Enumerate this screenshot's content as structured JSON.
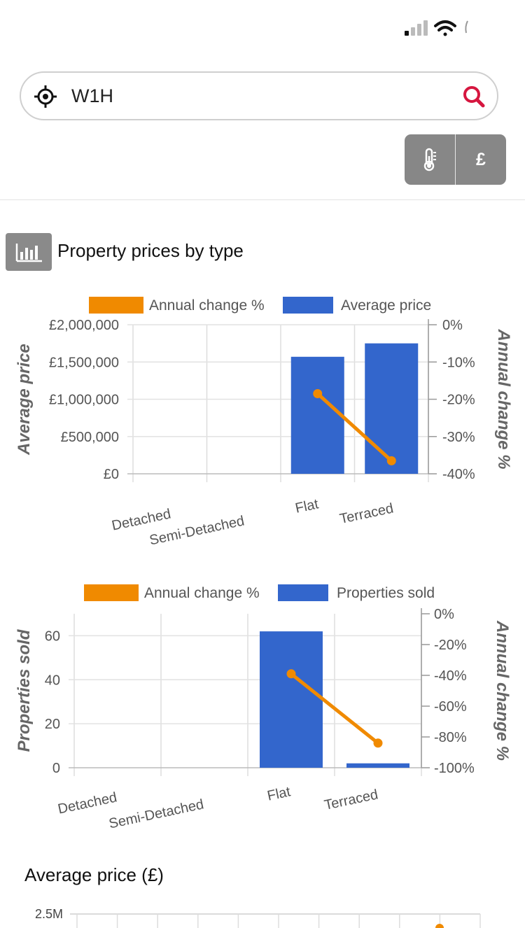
{
  "search": {
    "value": "W1H"
  },
  "toggles": [
    {
      "icon": "thermometer-icon"
    },
    {
      "label": "£"
    }
  ],
  "section": {
    "title": "Property prices by type",
    "icon": "bar-chart-icon"
  },
  "colors": {
    "bar": "#3366cc",
    "line": "#f08a00",
    "accent": "#d6163f",
    "toggle": "#878787"
  },
  "chart_data": [
    {
      "type": "bar",
      "categories": [
        "Detached",
        "Semi-Detached",
        "Flat",
        "Terraced"
      ],
      "series": [
        {
          "name": "Average price",
          "type": "bar",
          "axis": "left",
          "values": [
            0,
            0,
            1570000,
            1750000
          ]
        },
        {
          "name": "Annual change %",
          "type": "line",
          "axis": "right",
          "values": [
            null,
            null,
            -18.5,
            -36.5
          ]
        }
      ],
      "legend": [
        "Annual change %",
        "Average price"
      ],
      "ylabel": "Average price",
      "y2label": "Annual change %",
      "ylim": [
        0,
        2000000
      ],
      "y2lim": [
        -40,
        0
      ],
      "yticks": [
        "£0",
        "£500,000",
        "£1,000,000",
        "£1,500,000",
        "£2,000,000"
      ],
      "y2ticks": [
        "-40%",
        "-30%",
        "-20%",
        "-10%",
        "0%"
      ],
      "legend_position": "top",
      "grid": true
    },
    {
      "type": "bar",
      "categories": [
        "Detached",
        "Semi-Detached",
        "Flat",
        "Terraced"
      ],
      "series": [
        {
          "name": "Properties sold",
          "type": "bar",
          "axis": "left",
          "values": [
            0,
            0,
            62,
            2
          ]
        },
        {
          "name": "Annual change %",
          "type": "line",
          "axis": "right",
          "values": [
            null,
            null,
            -39,
            -84
          ]
        }
      ],
      "legend": [
        "Annual change %",
        "Properties sold"
      ],
      "ylabel": "Properties sold",
      "y2label": "Annual change %",
      "ylim": [
        0,
        70
      ],
      "y2lim": [
        -100,
        0
      ],
      "yticks": [
        "0",
        "20",
        "40",
        "60"
      ],
      "y2ticks": [
        "-100%",
        "-80%",
        "-60%",
        "-40%",
        "-20%",
        "0%"
      ],
      "legend_position": "top",
      "grid": true
    }
  ],
  "avg_price_chart": {
    "title": "Average price (£)",
    "top_tick": "2.5M"
  }
}
